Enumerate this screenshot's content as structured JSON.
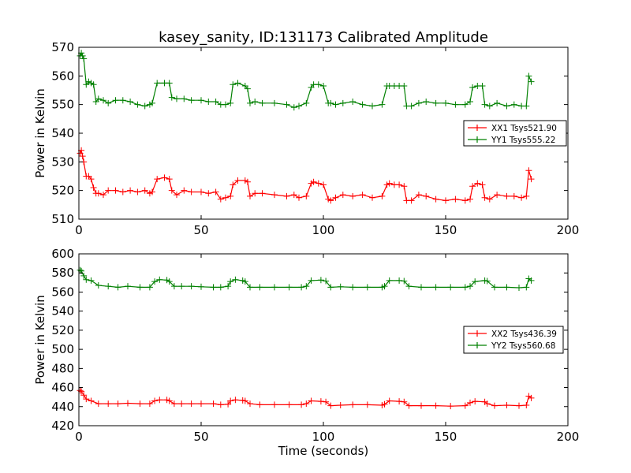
{
  "figure": {
    "title": "kasey_sanity, ID:131173 Calibrated Amplitude"
  },
  "chart_data": [
    {
      "type": "line",
      "title": "kasey_sanity, ID:131173 Calibrated Amplitude",
      "xlabel": "",
      "ylabel": "Power in Kelvin",
      "xlim": [
        0,
        200
      ],
      "ylim": [
        510,
        570
      ],
      "xticks": [
        0,
        50,
        100,
        150,
        200
      ],
      "yticks": [
        510,
        520,
        530,
        540,
        550,
        560,
        570
      ],
      "grid": false,
      "legend_position": "right",
      "series": [
        {
          "name": "XX1 Tsys521.90",
          "color": "#ff0000",
          "x": [
            0.5,
            1,
            1.5,
            2,
            3,
            4,
            5,
            6,
            7,
            8,
            10,
            12,
            15,
            18,
            21,
            24,
            27,
            29,
            30,
            32,
            35,
            37,
            38,
            40,
            43,
            46,
            50,
            53,
            56,
            58,
            60,
            62,
            63,
            65,
            68,
            69,
            70,
            72,
            75,
            80,
            85,
            88,
            90,
            93,
            95,
            96,
            98,
            100,
            102,
            103,
            105,
            108,
            112,
            116,
            120,
            124,
            126,
            127,
            129,
            131,
            133,
            134,
            136,
            139,
            142,
            146,
            150,
            154,
            158,
            160,
            161,
            163,
            165,
            166,
            168,
            171,
            175,
            178,
            181,
            183,
            184,
            185
          ],
          "y": [
            533,
            534,
            532,
            530,
            525,
            525,
            524,
            521,
            519,
            519,
            518.5,
            520,
            520,
            519.5,
            520,
            519.5,
            520,
            519,
            519.5,
            524,
            524.5,
            524,
            520,
            518.5,
            520,
            519.5,
            519.5,
            519,
            519.5,
            517,
            517.5,
            518,
            522,
            523.5,
            523.5,
            523,
            518,
            519,
            519,
            518.5,
            518,
            518.5,
            517.5,
            518,
            522.5,
            523,
            522.5,
            522,
            517,
            516.5,
            517.5,
            518.5,
            518,
            518.5,
            517.5,
            518,
            522,
            522.5,
            522,
            522,
            521.5,
            516.5,
            516.5,
            518.5,
            518,
            517,
            516.5,
            517,
            516.5,
            517,
            521.5,
            522.5,
            522,
            517.5,
            517,
            518.5,
            518,
            518,
            517.5,
            518,
            527,
            524
          ]
        },
        {
          "name": "YY1 Tsys555.22",
          "color": "#008000",
          "x": [
            0.5,
            1,
            1.5,
            2,
            3,
            4,
            5,
            6,
            7,
            8,
            10,
            12,
            15,
            18,
            21,
            24,
            27,
            29,
            30,
            32,
            35,
            37,
            38,
            40,
            43,
            46,
            50,
            53,
            56,
            58,
            60,
            62,
            63,
            65,
            68,
            69,
            70,
            72,
            75,
            80,
            85,
            88,
            90,
            93,
            95,
            96,
            98,
            100,
            102,
            103,
            105,
            108,
            112,
            116,
            120,
            124,
            126,
            127,
            129,
            131,
            133,
            134,
            136,
            139,
            142,
            146,
            150,
            154,
            158,
            160,
            161,
            163,
            165,
            166,
            168,
            171,
            175,
            178,
            181,
            183,
            184,
            185
          ],
          "y": [
            567,
            568,
            567,
            566,
            557,
            558,
            557.5,
            557,
            551,
            552,
            551.5,
            550.5,
            551.5,
            551.5,
            551,
            550,
            549.5,
            550,
            550.5,
            557.5,
            557.5,
            557.5,
            552.5,
            552,
            552,
            551.5,
            551.5,
            551,
            551,
            550,
            550,
            550.5,
            557,
            557.5,
            556.5,
            555.5,
            550.5,
            551,
            550.5,
            550.5,
            550,
            549,
            549.5,
            550.5,
            556,
            557,
            557,
            556.5,
            550.5,
            550.5,
            550,
            550.5,
            551,
            550,
            549.5,
            550,
            556.5,
            556.5,
            556.5,
            556.5,
            556.5,
            549.5,
            549.5,
            550.5,
            551,
            550.5,
            550.5,
            550,
            550,
            551,
            556,
            556.5,
            556.5,
            550,
            549.5,
            550.5,
            549.5,
            550,
            549.5,
            549.5,
            560,
            558
          ]
        }
      ]
    },
    {
      "type": "line",
      "title": "",
      "xlabel": "Time (seconds)",
      "ylabel": "Power in Kelvin",
      "xlim": [
        0,
        200
      ],
      "ylim": [
        420,
        600
      ],
      "xticks": [
        0,
        50,
        100,
        150,
        200
      ],
      "yticks": [
        420,
        440,
        460,
        480,
        500,
        520,
        540,
        560,
        580,
        600
      ],
      "grid": false,
      "legend_position": "right",
      "series": [
        {
          "name": "XX2 Tsys436.39",
          "color": "#ff0000",
          "x": [
            0.5,
            1,
            2,
            3,
            5,
            8,
            12,
            16,
            20,
            25,
            29,
            31,
            33,
            36,
            37,
            39,
            42,
            46,
            50,
            55,
            58,
            61,
            62,
            64,
            67,
            68,
            70,
            74,
            80,
            86,
            91,
            93,
            95,
            99,
            101,
            103,
            107,
            112,
            118,
            124,
            125,
            127,
            131,
            133,
            135,
            140,
            146,
            152,
            158,
            160,
            162,
            166,
            167,
            170,
            175,
            180,
            183,
            184,
            185
          ],
          "y": [
            457,
            456,
            452,
            448,
            446,
            443,
            443,
            443,
            443.5,
            443,
            443,
            446,
            447,
            447,
            446,
            443,
            443,
            443,
            443,
            443,
            442,
            442.5,
            446,
            447,
            446.5,
            446,
            443,
            442,
            442,
            442,
            442,
            443,
            446,
            445.5,
            445,
            441,
            441.5,
            442,
            442,
            441.5,
            442.5,
            446,
            445.5,
            445,
            441,
            441,
            441,
            440.5,
            441,
            444,
            445.5,
            445,
            443,
            441,
            441.5,
            441,
            441.5,
            451,
            449
          ]
        },
        {
          "name": "YY2 Tsys560.68",
          "color": "#008000",
          "x": [
            0.5,
            1,
            2,
            3,
            5,
            8,
            12,
            16,
            20,
            25,
            29,
            31,
            33,
            36,
            37,
            39,
            42,
            46,
            50,
            55,
            58,
            61,
            62,
            64,
            67,
            68,
            70,
            74,
            80,
            86,
            91,
            93,
            95,
            99,
            101,
            103,
            107,
            112,
            118,
            124,
            125,
            127,
            131,
            133,
            135,
            140,
            146,
            152,
            158,
            160,
            162,
            166,
            167,
            170,
            175,
            180,
            183,
            184,
            185
          ],
          "y": [
            583,
            582,
            577,
            573,
            572,
            567,
            566,
            565,
            566,
            565,
            565,
            571,
            573,
            572.5,
            571,
            566,
            566,
            566,
            565.5,
            565,
            565,
            566,
            571,
            573,
            572,
            571,
            565,
            565,
            565,
            565,
            565,
            566,
            572,
            572.5,
            571.5,
            565,
            565.5,
            565,
            565,
            565,
            566,
            572,
            572,
            571.5,
            566,
            565,
            565,
            565,
            565,
            566,
            571,
            572,
            571.5,
            565,
            565,
            564.5,
            565,
            574,
            572
          ]
        }
      ]
    }
  ]
}
